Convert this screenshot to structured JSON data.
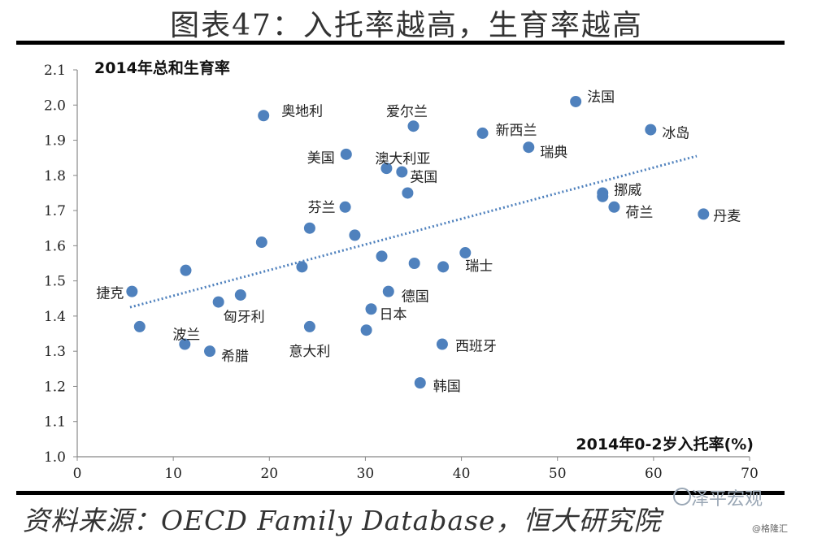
{
  "figure_title": "图表47：入托率越高，生育率越高",
  "source": "资料来源：OECD Family Database，恒大研究院",
  "watermarks": {
    "primary": "泽平宏观",
    "secondary": "@格隆汇"
  },
  "colors": {
    "point": "#4f81bd",
    "trend": "#4f81bd",
    "rule": "#000000"
  },
  "chart_data": {
    "type": "scatter",
    "ylabel": "2014年总和生育率",
    "xlabel": "2014年0-2岁入托率(%)",
    "xlim": [
      0,
      70
    ],
    "ylim": [
      1.0,
      2.1
    ],
    "xticks": [
      0,
      10,
      20,
      30,
      40,
      50,
      60,
      70
    ],
    "yticks": [
      "1.0",
      "1.1",
      "1.2",
      "1.3",
      "1.4",
      "1.5",
      "1.6",
      "1.7",
      "1.8",
      "1.9",
      "2.0",
      "2.1"
    ],
    "grid": false,
    "trendline": {
      "type": "linear",
      "x": [
        5.5,
        64.5
      ],
      "y": [
        1.425,
        1.855
      ]
    },
    "points": [
      {
        "label": "奥地利",
        "x": 19.4,
        "y": 1.97
      },
      {
        "label": "爱尔兰",
        "x": 35.0,
        "y": 1.94
      },
      {
        "label": "新西兰",
        "x": 42.2,
        "y": 1.92
      },
      {
        "label": "法国",
        "x": 51.9,
        "y": 2.01
      },
      {
        "label": "冰岛",
        "x": 59.7,
        "y": 1.93
      },
      {
        "label": "瑞典",
        "x": 47.0,
        "y": 1.88
      },
      {
        "label": "美国",
        "x": 28.0,
        "y": 1.86
      },
      {
        "label": "澳大利亚",
        "x": 32.2,
        "y": 1.82
      },
      {
        "label": "英国",
        "x": 33.8,
        "y": 1.81
      },
      {
        "label": "",
        "x": 34.4,
        "y": 1.75
      },
      {
        "label": "芬兰",
        "x": 27.9,
        "y": 1.71
      },
      {
        "label": "挪威",
        "x": 54.7,
        "y": 1.75
      },
      {
        "label": "",
        "x": 54.7,
        "y": 1.74
      },
      {
        "label": "荷兰",
        "x": 55.9,
        "y": 1.71
      },
      {
        "label": "丹麦",
        "x": 65.2,
        "y": 1.69
      },
      {
        "label": "",
        "x": 24.2,
        "y": 1.65
      },
      {
        "label": "",
        "x": 19.2,
        "y": 1.61
      },
      {
        "label": "",
        "x": 28.9,
        "y": 1.63
      },
      {
        "label": "",
        "x": 31.7,
        "y": 1.57
      },
      {
        "label": "",
        "x": 35.1,
        "y": 1.55
      },
      {
        "label": "",
        "x": 38.1,
        "y": 1.54
      },
      {
        "label": "瑞士",
        "x": 40.4,
        "y": 1.58
      },
      {
        "label": "",
        "x": 23.4,
        "y": 1.54
      },
      {
        "label": "",
        "x": 11.3,
        "y": 1.53
      },
      {
        "label": "捷克",
        "x": 5.7,
        "y": 1.47
      },
      {
        "label": "",
        "x": 17.0,
        "y": 1.46
      },
      {
        "label": "匈牙利",
        "x": 14.7,
        "y": 1.44
      },
      {
        "label": "德国",
        "x": 32.4,
        "y": 1.47
      },
      {
        "label": "日本",
        "x": 30.6,
        "y": 1.42
      },
      {
        "label": "",
        "x": 6.5,
        "y": 1.37
      },
      {
        "label": "意大利",
        "x": 24.2,
        "y": 1.37
      },
      {
        "label": "",
        "x": 30.1,
        "y": 1.36
      },
      {
        "label": "波兰",
        "x": 11.2,
        "y": 1.32
      },
      {
        "label": "希腊",
        "x": 13.8,
        "y": 1.3
      },
      {
        "label": "西班牙",
        "x": 38.0,
        "y": 1.32
      },
      {
        "label": "韩国",
        "x": 35.7,
        "y": 1.21
      }
    ]
  }
}
